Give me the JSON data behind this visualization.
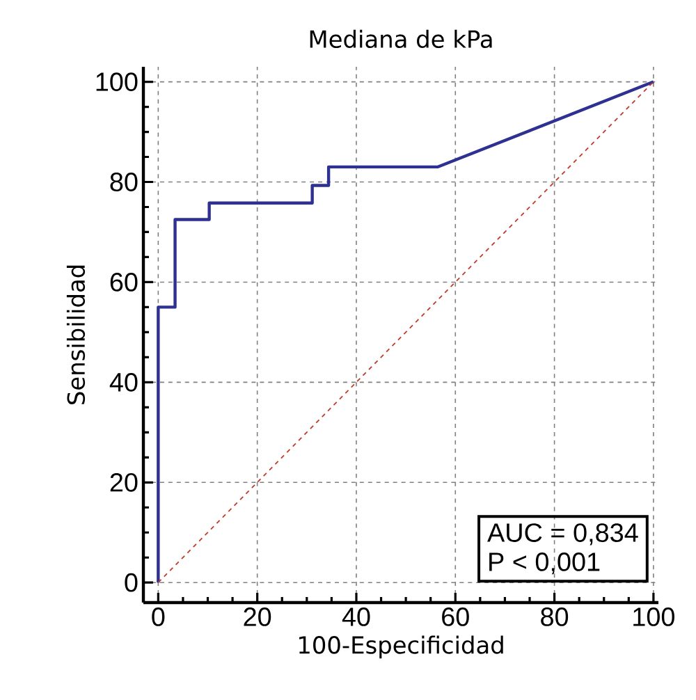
{
  "chart_data": {
    "type": "line",
    "title": "Mediana de kPa",
    "xlabel": "100-Especificidad",
    "ylabel": "Sensibilidad",
    "series": [
      {
        "color": "#2e3192",
        "line_style": "solid",
        "x": [
          0,
          0,
          3.4,
          3.4,
          10.3,
          10.3,
          31.1,
          31.1,
          34.4,
          34.4,
          56.4,
          100
        ],
        "values": [
          0,
          55,
          55,
          72.5,
          72.5,
          75.8,
          75.8,
          79.3,
          79.3,
          83,
          83,
          100
        ]
      },
      {
        "type": "line",
        "color": "#c0392b",
        "line_style": "dashed",
        "x": [
          0,
          100
        ],
        "values": [
          0,
          100
        ]
      }
    ],
    "xlim": [
      -3,
      101
    ],
    "ylim": [
      -4,
      103
    ],
    "xticks": [
      0,
      20,
      40,
      60,
      80,
      100
    ],
    "yticks": [
      0,
      20,
      40,
      60,
      80,
      100
    ],
    "grid": true,
    "marker": "none",
    "annotations": [
      "AUC = 0,834",
      "P < 0,001"
    ]
  }
}
